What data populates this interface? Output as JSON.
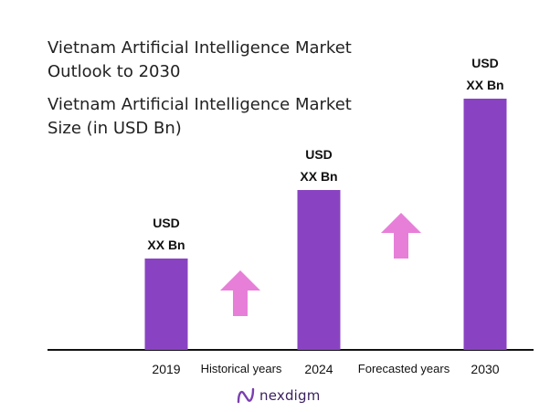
{
  "title_lines": [
    "Vietnam Artificial Intelligence Market",
    "Outlook to 2030"
  ],
  "subtitle_lines": [
    "Vietnam Artificial Intelligence Market",
    "Size (in USD Bn)"
  ],
  "brand": "nexdigm",
  "colors": {
    "bar": "#8943c2",
    "arrow": "#e77fd9",
    "axis": "#111111",
    "text": "#111111"
  },
  "chart_data": {
    "type": "bar",
    "categories": [
      "2019",
      "2024",
      "2030"
    ],
    "values": [
      1,
      1.75,
      2.75
    ],
    "data_labels": [
      [
        "USD",
        "XX Bn"
      ],
      [
        "USD",
        "XX Bn"
      ],
      [
        "USD",
        "XX Bn"
      ]
    ],
    "period_labels": [
      "Historical years",
      "Forecasted years"
    ],
    "value_axis_shown": false,
    "grid": false,
    "title": "Vietnam Artificial Intelligence Market Outlook to 2030",
    "subtitle": "Vietnam Artificial Intelligence Market Size (in USD Bn)",
    "xlabel": "",
    "ylabel": ""
  }
}
